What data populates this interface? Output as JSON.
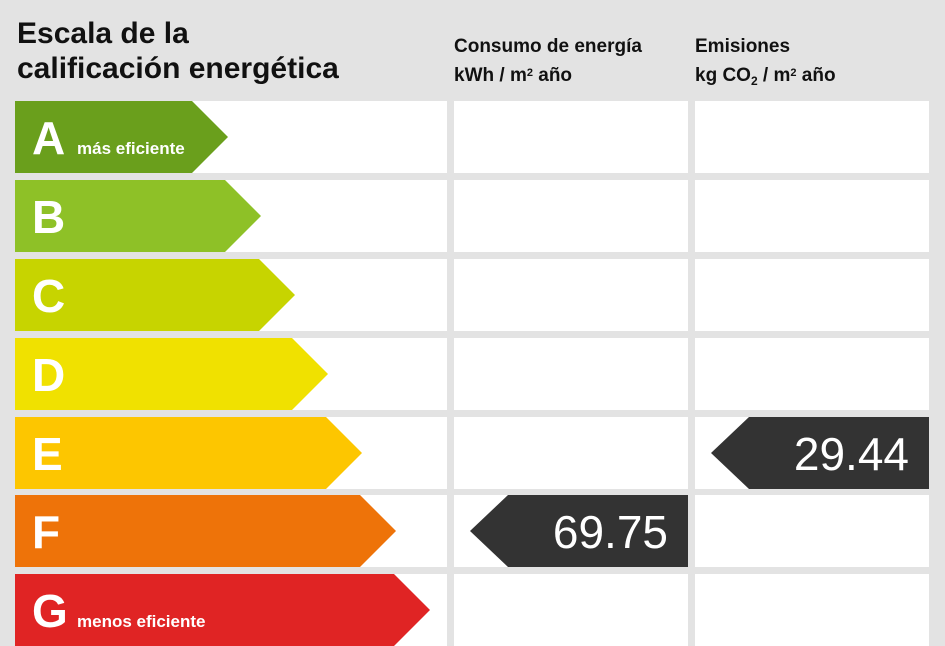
{
  "header": {
    "title_line1": "Escala de la",
    "title_line2": "calificación energética",
    "consumption_line1": "Consumo de energía",
    "consumption_unit_a": "kWh / m",
    "consumption_unit_sup": "2",
    "consumption_unit_b": " año",
    "emissions_line1": "Emisiones",
    "emissions_unit_a": "kg CO",
    "emissions_unit_sub": "2",
    "emissions_unit_b": " / m",
    "emissions_unit_sup": "2",
    "emissions_unit_c": " año"
  },
  "scale": [
    {
      "letter": "A",
      "label": "más eficiente",
      "color": "#6a9f1c"
    },
    {
      "letter": "B",
      "label": "",
      "color": "#8ec127"
    },
    {
      "letter": "C",
      "label": "",
      "color": "#c7d400"
    },
    {
      "letter": "D",
      "label": "",
      "color": "#f0e100"
    },
    {
      "letter": "E",
      "label": "",
      "color": "#fdc600"
    },
    {
      "letter": "F",
      "label": "",
      "color": "#ee7309"
    },
    {
      "letter": "G",
      "label": "menos eficiente",
      "color": "#e02424"
    }
  ],
  "rating": {
    "consumption": {
      "value": "69.75",
      "class": "F"
    },
    "emissions": {
      "value": "29.44",
      "class": "E"
    }
  },
  "colors": {
    "marker": "#333333",
    "background": "#e3e3e3",
    "cell": "#ffffff"
  }
}
